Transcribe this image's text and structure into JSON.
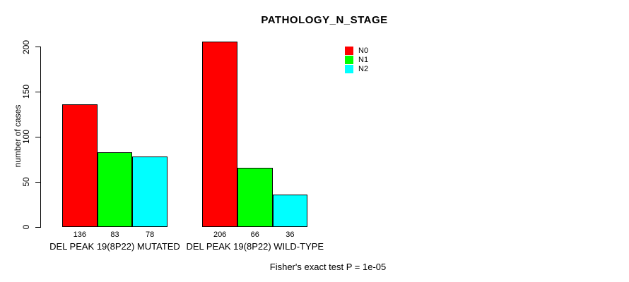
{
  "chart_data": {
    "type": "bar",
    "title": "PATHOLOGY_N_STAGE",
    "ylabel": "number of cases",
    "xlabel": "",
    "ylim": [
      0,
      200
    ],
    "yticks": [
      0,
      50,
      100,
      150,
      200
    ],
    "grid": false,
    "legend_position": "top-right",
    "categories": [
      "DEL PEAK 19(8P22) MUTATED",
      "DEL PEAK 19(8P22) WILD-TYPE"
    ],
    "series": [
      {
        "name": "N0",
        "color": "#ff0000",
        "values": [
          136,
          206
        ]
      },
      {
        "name": "N1",
        "color": "#00ff00",
        "values": [
          83,
          66
        ]
      },
      {
        "name": "N2",
        "color": "#00ffff",
        "values": [
          78,
          36
        ]
      }
    ],
    "value_labels_shown": true,
    "footnote": "Fisher's exact test P = 1e-05",
    "colors": {
      "bar_border": "#000000",
      "text": "#000000",
      "background": "#ffffff"
    }
  }
}
